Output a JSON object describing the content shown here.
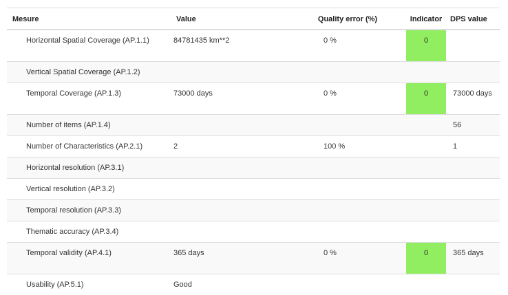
{
  "headers": {
    "measure": "Mesure",
    "value": "Value",
    "quality": "Quality error (%)",
    "indicator": "Indicator",
    "dps": "DPS value"
  },
  "colors": {
    "indicator_green": "#90ee60",
    "row_stripe": "#f9f9f9",
    "border": "#dddddd"
  },
  "rows": [
    {
      "measure": "Horizontal Spatial Coverage (AP.1.1)",
      "value": "84781435 km**2",
      "quality": "0 %",
      "indicator": "0",
      "dps": ""
    },
    {
      "measure": "Vertical Spatial Coverage (AP.1.2)",
      "value": "",
      "quality": "",
      "indicator": "",
      "dps": ""
    },
    {
      "measure": "Temporal Coverage (AP.1.3)",
      "value": "73000 days",
      "quality": "0 %",
      "indicator": "0",
      "dps": "73000 days"
    },
    {
      "measure": "Number of items (AP.1.4)",
      "value": "",
      "quality": "",
      "indicator": "",
      "dps": "56"
    },
    {
      "measure": "Number of Characteristics (AP.2.1)",
      "value": "2",
      "quality": "100 %",
      "indicator": "",
      "dps": "1"
    },
    {
      "measure": "Horizontal resolution (AP.3.1)",
      "value": "",
      "quality": "",
      "indicator": "",
      "dps": ""
    },
    {
      "measure": "Vertical resolution (AP.3.2)",
      "value": "",
      "quality": "",
      "indicator": "",
      "dps": ""
    },
    {
      "measure": "Temporal resolution (AP.3.3)",
      "value": "",
      "quality": "",
      "indicator": "",
      "dps": ""
    },
    {
      "measure": "Thematic accuracy (AP.3.4)",
      "value": "",
      "quality": "",
      "indicator": "",
      "dps": ""
    },
    {
      "measure": "Temporal validity (AP.4.1)",
      "value": "365 days",
      "quality": "0 %",
      "indicator": "0",
      "dps": "365 days"
    },
    {
      "measure": "Usability (AP.5.1)",
      "value": "Good",
      "quality": "",
      "indicator": "",
      "dps": ""
    }
  ]
}
